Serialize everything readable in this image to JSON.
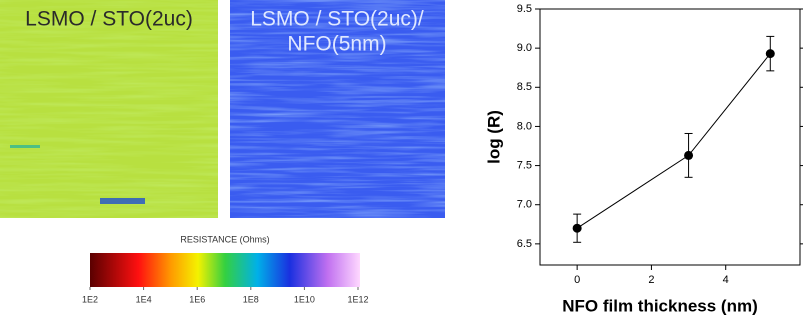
{
  "images": [
    {
      "label_lines": [
        "LSMO / STO(2uc)"
      ]
    },
    {
      "label_lines": [
        "LSMO / STO(2uc)/",
        "NFO(5nm)"
      ]
    }
  ],
  "colorbar": {
    "label": "RESISTANCE (Ohms)",
    "scale": "log",
    "lim": [
      100,
      1000000000000
    ],
    "ticks": [
      {
        "value": 100,
        "label": "1E2"
      },
      {
        "value": 10000,
        "label": "1E4"
      },
      {
        "value": 1000000,
        "label": "1E6"
      },
      {
        "value": 100000000,
        "label": "1E8"
      },
      {
        "value": 10000000000,
        "label": "1E10"
      },
      {
        "value": 1000000000000,
        "label": "1E12"
      }
    ]
  },
  "chart_data": {
    "type": "line",
    "xlabel": "NFO film thickness (nm)",
    "ylabel": "log (R)",
    "x": [
      0,
      3,
      5.2
    ],
    "series": [
      {
        "color": "#000000",
        "values": [
          6.7,
          7.63,
          8.93
        ],
        "errors": [
          0.18,
          0.28,
          0.22
        ]
      }
    ],
    "xlim": [
      -1,
      6
    ],
    "xticks": [
      0,
      2,
      4
    ],
    "ylim": [
      6.23,
      9.5
    ],
    "yticks": [
      6.5,
      {
        "value": 7,
        "label": "7.0"
      },
      7.5,
      {
        "value": 8,
        "label": "8.0"
      },
      8.5,
      {
        "value": 9,
        "label": "9.0"
      },
      9.5
    ]
  }
}
